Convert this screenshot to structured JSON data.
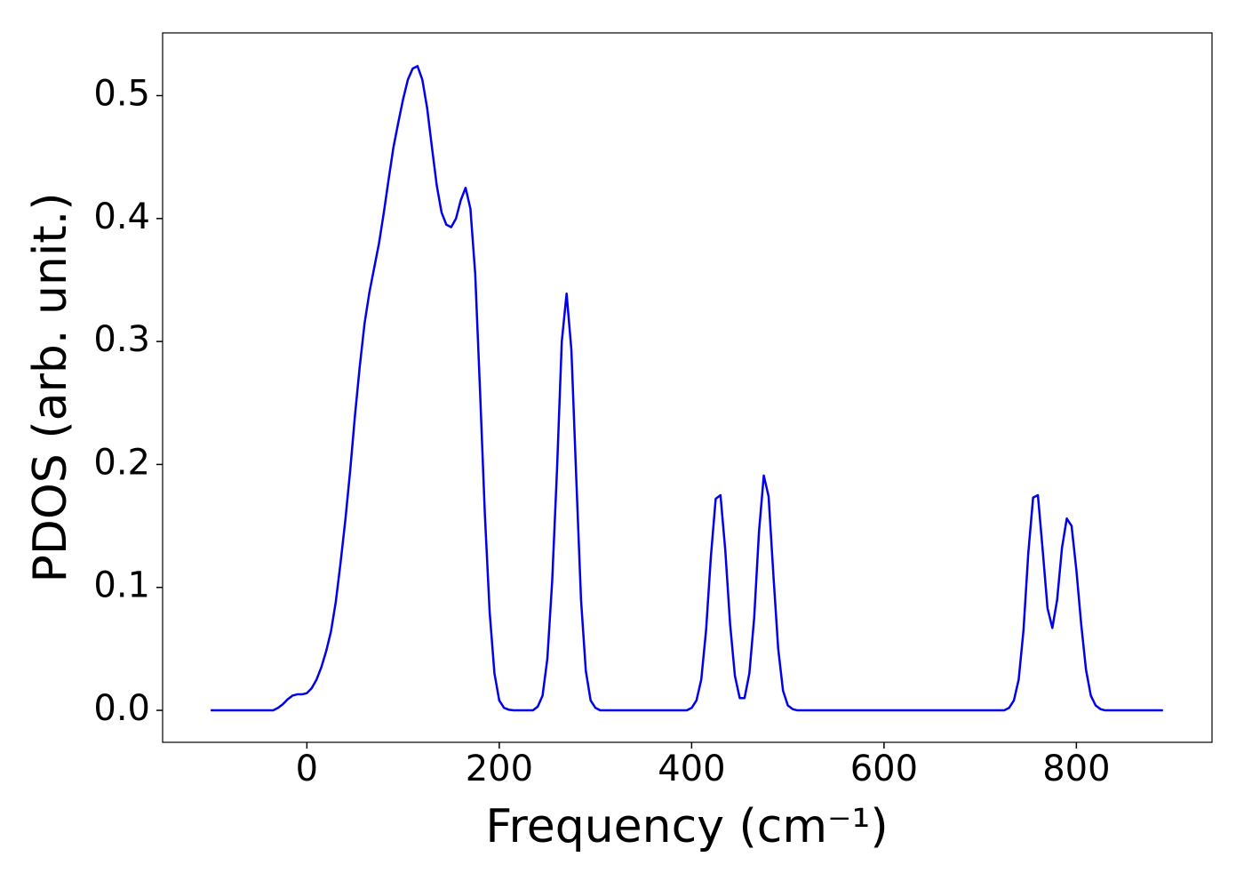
{
  "chart_data": {
    "type": "line",
    "x_label": "Frequency (cm⁻¹)",
    "y_label": "PDOS (arb. unit.)",
    "xlim": [
      -150,
      941
    ],
    "ylim": [
      -0.026,
      0.551
    ],
    "xticks": [
      0,
      200,
      400,
      600,
      800
    ],
    "yticks": [
      {
        "value": 0,
        "label": "0.0"
      },
      0.1,
      0.2,
      0.3,
      0.4,
      0.5
    ],
    "grid": false,
    "x": [
      -100,
      -35,
      -30,
      -25,
      -20,
      -15,
      -10,
      -5,
      0,
      5,
      10,
      15,
      20,
      25,
      30,
      35,
      40,
      45,
      50,
      55,
      60,
      65,
      70,
      75,
      80,
      85,
      90,
      95,
      100,
      105,
      110,
      115,
      120,
      125,
      130,
      135,
      140,
      145,
      150,
      155,
      160,
      165,
      170,
      175,
      180,
      185,
      190,
      195,
      200,
      205,
      210,
      215,
      235,
      240,
      245,
      250,
      255,
      260,
      265,
      270,
      275,
      280,
      285,
      290,
      295,
      300,
      305,
      395,
      400,
      405,
      410,
      415,
      420,
      425,
      430,
      435,
      440,
      445,
      450,
      455,
      460,
      465,
      470,
      475,
      480,
      485,
      490,
      495,
      500,
      505,
      510,
      725,
      730,
      735,
      740,
      745,
      750,
      755,
      760,
      765,
      770,
      775,
      780,
      785,
      790,
      795,
      800,
      805,
      810,
      815,
      820,
      825,
      830,
      890
    ],
    "series": [
      {
        "color": "#0000ee",
        "values": [
          0,
          0,
          0.002,
          0.005,
          0.009,
          0.012,
          0.013,
          0.013,
          0.014,
          0.018,
          0.025,
          0.035,
          0.048,
          0.064,
          0.088,
          0.12,
          0.155,
          0.195,
          0.24,
          0.28,
          0.315,
          0.34,
          0.36,
          0.38,
          0.405,
          0.432,
          0.458,
          0.478,
          0.497,
          0.513,
          0.522,
          0.524,
          0.513,
          0.49,
          0.458,
          0.427,
          0.405,
          0.395,
          0.393,
          0.4,
          0.415,
          0.425,
          0.408,
          0.355,
          0.26,
          0.16,
          0.08,
          0.03,
          0.008,
          0.002,
          0.0005,
          0,
          0,
          0.003,
          0.012,
          0.042,
          0.105,
          0.195,
          0.3,
          0.339,
          0.293,
          0.19,
          0.09,
          0.032,
          0.008,
          0.002,
          0,
          0,
          0.002,
          0.008,
          0.025,
          0.065,
          0.125,
          0.172,
          0.175,
          0.13,
          0.07,
          0.028,
          0.01,
          0.01,
          0.03,
          0.075,
          0.145,
          0.191,
          0.174,
          0.11,
          0.05,
          0.016,
          0.004,
          0.001,
          0,
          0,
          0.002,
          0.008,
          0.025,
          0.065,
          0.128,
          0.173,
          0.175,
          0.13,
          0.083,
          0.067,
          0.09,
          0.132,
          0.156,
          0.15,
          0.114,
          0.07,
          0.033,
          0.012,
          0.004,
          0.001,
          0,
          0
        ]
      }
    ]
  }
}
